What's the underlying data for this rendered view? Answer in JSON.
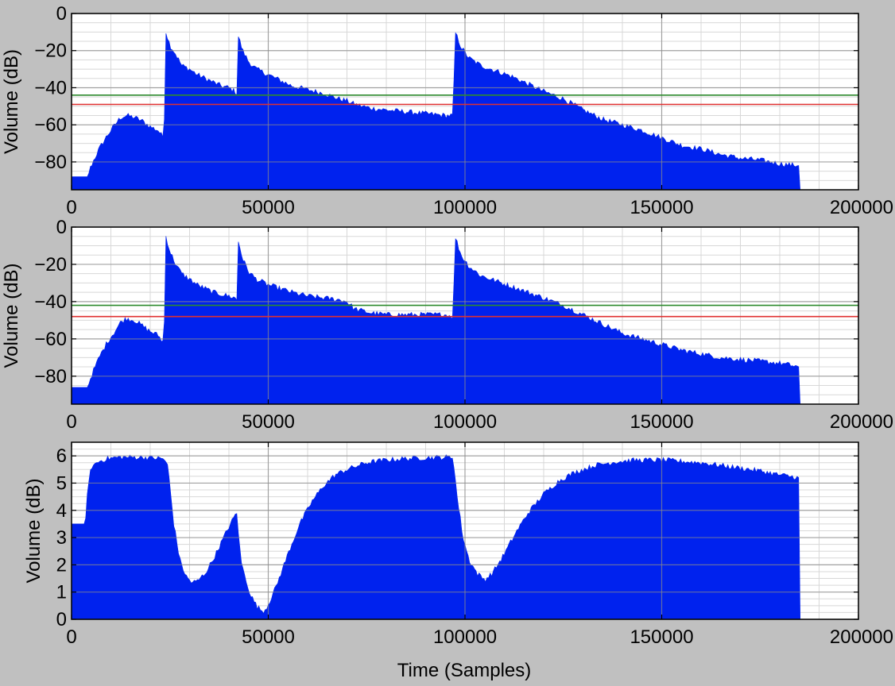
{
  "colors": {
    "background": "#c0c0c0",
    "plot_background": "#ffffff",
    "fill": "#0022ee",
    "green_line": "#2e8b2e",
    "red_line": "#e03030",
    "major_grid": "#8a8a8a",
    "minor_grid": "#d8d8d8"
  },
  "chart_data": [
    {
      "type": "area",
      "xlabel": "",
      "ylabel": "Volume (dB)",
      "xlim": [
        0,
        200000
      ],
      "ylim": [
        -95,
        0
      ],
      "xticks": [
        0,
        50000,
        100000,
        150000,
        200000
      ],
      "yticks": [
        0,
        -20,
        -40,
        -60,
        -80
      ],
      "ytick_labels": [
        "0",
        "−20",
        "−40",
        "−60",
        "−80"
      ],
      "grid": true,
      "baseline": -95,
      "envelope": [
        [
          0,
          -88
        ],
        [
          4000,
          -88
        ],
        [
          5000,
          -82
        ],
        [
          7000,
          -73
        ],
        [
          9000,
          -66
        ],
        [
          11000,
          -60
        ],
        [
          12500,
          -56
        ],
        [
          14000,
          -55
        ],
        [
          16000,
          -56
        ],
        [
          18000,
          -58
        ],
        [
          20000,
          -61
        ],
        [
          22000,
          -63
        ],
        [
          23000,
          -66
        ],
        [
          23500,
          -67
        ],
        [
          24000,
          -10
        ],
        [
          25000,
          -17
        ],
        [
          26500,
          -22
        ],
        [
          28000,
          -28
        ],
        [
          30000,
          -30
        ],
        [
          32000,
          -33
        ],
        [
          34000,
          -35
        ],
        [
          36000,
          -37
        ],
        [
          38000,
          -39
        ],
        [
          40000,
          -40
        ],
        [
          41500,
          -42
        ],
        [
          42000,
          -43
        ],
        [
          42200,
          -11
        ],
        [
          43500,
          -20
        ],
        [
          45000,
          -26
        ],
        [
          47000,
          -30
        ],
        [
          50000,
          -33
        ],
        [
          53000,
          -36
        ],
        [
          56000,
          -39
        ],
        [
          60000,
          -41
        ],
        [
          64000,
          -43
        ],
        [
          68000,
          -46
        ],
        [
          70000,
          -47
        ],
        [
          72000,
          -49
        ],
        [
          76000,
          -51
        ],
        [
          80000,
          -52
        ],
        [
          85000,
          -53
        ],
        [
          90000,
          -54
        ],
        [
          95000,
          -55
        ],
        [
          97000,
          -55
        ],
        [
          97500,
          -10
        ],
        [
          99000,
          -18
        ],
        [
          101000,
          -24
        ],
        [
          104000,
          -28
        ],
        [
          108000,
          -31
        ],
        [
          112000,
          -34
        ],
        [
          116000,
          -38
        ],
        [
          120000,
          -42
        ],
        [
          125000,
          -46
        ],
        [
          130000,
          -52
        ],
        [
          135000,
          -57
        ],
        [
          140000,
          -60
        ],
        [
          145000,
          -63
        ],
        [
          150000,
          -67
        ],
        [
          155000,
          -71
        ],
        [
          160000,
          -73
        ],
        [
          165000,
          -76
        ],
        [
          170000,
          -78
        ],
        [
          175000,
          -79
        ],
        [
          180000,
          -81
        ],
        [
          185000,
          -82
        ],
        [
          185200,
          -95
        ]
      ],
      "green_line_y": -44,
      "red_line_y": -49
    },
    {
      "type": "area",
      "xlabel": "",
      "ylabel": "Volume (dB)",
      "xlim": [
        0,
        200000
      ],
      "ylim": [
        -95,
        0
      ],
      "xticks": [
        0,
        50000,
        100000,
        150000,
        200000
      ],
      "yticks": [
        0,
        -20,
        -40,
        -60,
        -80
      ],
      "ytick_labels": [
        "0",
        "−20",
        "−40",
        "−60",
        "−80"
      ],
      "grid": true,
      "baseline": -95,
      "envelope": [
        [
          0,
          -86
        ],
        [
          4000,
          -86
        ],
        [
          5000,
          -80
        ],
        [
          7000,
          -70
        ],
        [
          9000,
          -62
        ],
        [
          11000,
          -56
        ],
        [
          12500,
          -51
        ],
        [
          14000,
          -49
        ],
        [
          16000,
          -50
        ],
        [
          18000,
          -53
        ],
        [
          20000,
          -56
        ],
        [
          22000,
          -58
        ],
        [
          23000,
          -61
        ],
        [
          23500,
          -62
        ],
        [
          24000,
          -5
        ],
        [
          25000,
          -13
        ],
        [
          26500,
          -20
        ],
        [
          28000,
          -25
        ],
        [
          30000,
          -28
        ],
        [
          32000,
          -31
        ],
        [
          34000,
          -33
        ],
        [
          36000,
          -35
        ],
        [
          38000,
          -36
        ],
        [
          40000,
          -37
        ],
        [
          41500,
          -38
        ],
        [
          42000,
          -39
        ],
        [
          42200,
          -6
        ],
        [
          43500,
          -17
        ],
        [
          45000,
          -24
        ],
        [
          47000,
          -28
        ],
        [
          50000,
          -31
        ],
        [
          53000,
          -33
        ],
        [
          56000,
          -35
        ],
        [
          60000,
          -37
        ],
        [
          64000,
          -38
        ],
        [
          68000,
          -39
        ],
        [
          70000,
          -40
        ],
        [
          72000,
          -44
        ],
        [
          76000,
          -46
        ],
        [
          80000,
          -47
        ],
        [
          85000,
          -47
        ],
        [
          90000,
          -47
        ],
        [
          95000,
          -47
        ],
        [
          97000,
          -48
        ],
        [
          97500,
          -5
        ],
        [
          99000,
          -15
        ],
        [
          101000,
          -21
        ],
        [
          104000,
          -26
        ],
        [
          108000,
          -29
        ],
        [
          112000,
          -32
        ],
        [
          116000,
          -35
        ],
        [
          120000,
          -38
        ],
        [
          125000,
          -42
        ],
        [
          130000,
          -47
        ],
        [
          135000,
          -52
        ],
        [
          140000,
          -57
        ],
        [
          145000,
          -60
        ],
        [
          150000,
          -63
        ],
        [
          155000,
          -66
        ],
        [
          160000,
          -68
        ],
        [
          165000,
          -70
        ],
        [
          170000,
          -71
        ],
        [
          175000,
          -72
        ],
        [
          180000,
          -73
        ],
        [
          185000,
          -75
        ],
        [
          185200,
          -95
        ]
      ],
      "green_line_y": -42,
      "red_line_y": -48
    },
    {
      "type": "area",
      "xlabel": "Time (Samples)",
      "ylabel": "Volume (dB)",
      "xlim": [
        0,
        200000
      ],
      "ylim": [
        0,
        6.5
      ],
      "xticks": [
        0,
        50000,
        100000,
        150000,
        200000
      ],
      "yticks": [
        0,
        1,
        2,
        3,
        4,
        5,
        6
      ],
      "ytick_labels": [
        "0",
        "1",
        "2",
        "3",
        "4",
        "5",
        "6"
      ],
      "grid": true,
      "baseline": 0,
      "envelope": [
        [
          0,
          3.5
        ],
        [
          3500,
          3.5
        ],
        [
          4000,
          4.6
        ],
        [
          5000,
          5.6
        ],
        [
          7000,
          5.8
        ],
        [
          9000,
          5.9
        ],
        [
          12000,
          5.95
        ],
        [
          18000,
          5.95
        ],
        [
          23000,
          5.9
        ],
        [
          23500,
          5.9
        ],
        [
          24500,
          5.6
        ],
        [
          26000,
          3.5
        ],
        [
          27500,
          2.2
        ],
        [
          29000,
          1.6
        ],
        [
          30500,
          1.35
        ],
        [
          32000,
          1.4
        ],
        [
          34000,
          1.7
        ],
        [
          36000,
          2.2
        ],
        [
          38000,
          2.8
        ],
        [
          40000,
          3.4
        ],
        [
          41500,
          3.8
        ],
        [
          42000,
          3.9
        ],
        [
          43000,
          2.2
        ],
        [
          44000,
          1.6
        ],
        [
          45500,
          0.9
        ],
        [
          47000,
          0.5
        ],
        [
          48000,
          0.35
        ],
        [
          49000,
          0.3
        ],
        [
          50000,
          0.55
        ],
        [
          52000,
          1.2
        ],
        [
          55000,
          2.4
        ],
        [
          58000,
          3.5
        ],
        [
          61000,
          4.3
        ],
        [
          64000,
          4.9
        ],
        [
          67000,
          5.3
        ],
        [
          70000,
          5.5
        ],
        [
          75000,
          5.75
        ],
        [
          80000,
          5.85
        ],
        [
          85000,
          5.9
        ],
        [
          90000,
          5.93
        ],
        [
          95000,
          5.95
        ],
        [
          97000,
          5.95
        ],
        [
          98000,
          4.5
        ],
        [
          99500,
          3.0
        ],
        [
          101000,
          2.2
        ],
        [
          103000,
          1.7
        ],
        [
          105000,
          1.45
        ],
        [
          107000,
          1.7
        ],
        [
          110000,
          2.4
        ],
        [
          113000,
          3.2
        ],
        [
          116000,
          3.9
        ],
        [
          120000,
          4.6
        ],
        [
          124000,
          5.1
        ],
        [
          128000,
          5.4
        ],
        [
          133000,
          5.65
        ],
        [
          138000,
          5.78
        ],
        [
          143000,
          5.84
        ],
        [
          150000,
          5.85
        ],
        [
          155000,
          5.8
        ],
        [
          160000,
          5.75
        ],
        [
          165000,
          5.65
        ],
        [
          170000,
          5.55
        ],
        [
          175000,
          5.45
        ],
        [
          180000,
          5.3
        ],
        [
          185000,
          5.2
        ],
        [
          185200,
          0
        ]
      ],
      "green_line_y": null,
      "red_line_y": null
    }
  ]
}
